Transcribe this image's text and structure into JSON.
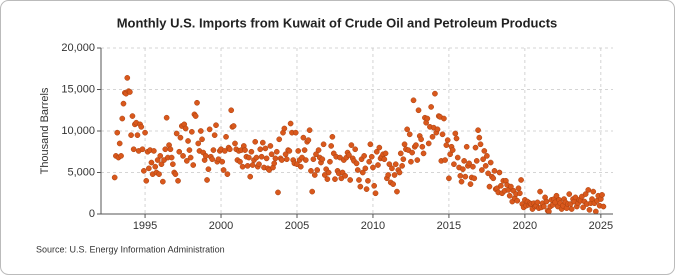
{
  "chart_data": {
    "type": "scatter",
    "title": "Monthly U.S. Imports from Kuwait of Crude Oil and Petroleum Products",
    "y_label": "Thousand Barrels",
    "source": "Source: U.S. Energy Information Administration",
    "color": "#d9581c",
    "grid": true,
    "xlim": [
      1992.1,
      2025.8
    ],
    "xticks": [
      1995,
      2000,
      2005,
      2010,
      2015,
      2020,
      2025
    ],
    "ylim": [
      0,
      20000
    ],
    "yticks": [
      {
        "value": 0,
        "label": "0"
      },
      {
        "value": 5000,
        "label": "5,000"
      },
      {
        "value": 10000,
        "label": "10,000"
      },
      {
        "value": 15000,
        "label": "15,000"
      },
      {
        "value": 20000,
        "label": "20,000"
      }
    ],
    "x": [
      1993.0,
      1993.08,
      1993.17,
      1993.25,
      1993.33,
      1993.42,
      1993.5,
      1993.58,
      1993.67,
      1993.75,
      1993.83,
      1993.92,
      1994.0,
      1994.08,
      1994.17,
      1994.25,
      1994.33,
      1994.42,
      1994.5,
      1994.58,
      1994.67,
      1994.75,
      1994.83,
      1994.92,
      1995.0,
      1995.08,
      1995.17,
      1995.25,
      1995.33,
      1995.42,
      1995.5,
      1995.58,
      1995.67,
      1995.75,
      1995.83,
      1995.92,
      1996.0,
      1996.08,
      1996.17,
      1996.25,
      1996.33,
      1996.42,
      1996.5,
      1996.58,
      1996.67,
      1996.75,
      1996.83,
      1996.92,
      1997.0,
      1997.08,
      1997.17,
      1997.25,
      1997.33,
      1997.42,
      1997.5,
      1997.58,
      1997.67,
      1997.75,
      1997.83,
      1997.92,
      1998.0,
      1998.08,
      1998.17,
      1998.25,
      1998.33,
      1998.42,
      1998.5,
      1998.58,
      1998.67,
      1998.75,
      1998.83,
      1998.92,
      1999.0,
      1999.08,
      1999.17,
      1999.25,
      1999.33,
      1999.42,
      1999.5,
      1999.58,
      1999.67,
      1999.75,
      1999.83,
      1999.92,
      2000.0,
      2000.08,
      2000.17,
      2000.25,
      2000.33,
      2000.42,
      2000.5,
      2000.58,
      2000.67,
      2000.75,
      2000.83,
      2000.92,
      2001.0,
      2001.08,
      2001.17,
      2001.25,
      2001.33,
      2001.42,
      2001.5,
      2001.58,
      2001.67,
      2001.75,
      2001.83,
      2001.92,
      2002.0,
      2002.08,
      2002.17,
      2002.25,
      2002.33,
      2002.42,
      2002.5,
      2002.58,
      2002.67,
      2002.75,
      2002.83,
      2002.92,
      2003.0,
      2003.08,
      2003.17,
      2003.25,
      2003.33,
      2003.42,
      2003.5,
      2003.58,
      2003.67,
      2003.75,
      2003.83,
      2003.92,
      2004.0,
      2004.08,
      2004.17,
      2004.25,
      2004.33,
      2004.42,
      2004.5,
      2004.58,
      2004.67,
      2004.75,
      2004.83,
      2004.92,
      2005.0,
      2005.08,
      2005.17,
      2005.25,
      2005.33,
      2005.42,
      2005.5,
      2005.58,
      2005.67,
      2005.75,
      2005.83,
      2005.92,
      2006.0,
      2006.08,
      2006.17,
      2006.25,
      2006.33,
      2006.42,
      2006.5,
      2006.58,
      2006.67,
      2006.75,
      2006.83,
      2006.92,
      2007.0,
      2007.08,
      2007.17,
      2007.25,
      2007.33,
      2007.42,
      2007.5,
      2007.58,
      2007.67,
      2007.75,
      2007.83,
      2007.92,
      2008.0,
      2008.08,
      2008.17,
      2008.25,
      2008.33,
      2008.42,
      2008.5,
      2008.58,
      2008.67,
      2008.75,
      2008.83,
      2008.92,
      2009.0,
      2009.08,
      2009.17,
      2009.25,
      2009.33,
      2009.42,
      2009.5,
      2009.58,
      2009.67,
      2009.75,
      2009.83,
      2009.92,
      2010.0,
      2010.08,
      2010.17,
      2010.25,
      2010.33,
      2010.42,
      2010.5,
      2010.58,
      2010.67,
      2010.75,
      2010.83,
      2010.92,
      2011.0,
      2011.08,
      2011.17,
      2011.25,
      2011.33,
      2011.42,
      2011.5,
      2011.58,
      2011.67,
      2011.75,
      2011.83,
      2011.92,
      2012.0,
      2012.08,
      2012.17,
      2012.25,
      2012.33,
      2012.42,
      2012.5,
      2012.58,
      2012.67,
      2012.75,
      2012.83,
      2012.92,
      2013.0,
      2013.08,
      2013.17,
      2013.25,
      2013.33,
      2013.42,
      2013.5,
      2013.58,
      2013.67,
      2013.75,
      2013.83,
      2013.92,
      2014.0,
      2014.08,
      2014.17,
      2014.25,
      2014.33,
      2014.42,
      2014.5,
      2014.58,
      2014.67,
      2014.75,
      2014.83,
      2014.92,
      2015.0,
      2015.08,
      2015.17,
      2015.25,
      2015.33,
      2015.42,
      2015.5,
      2015.58,
      2015.67,
      2015.75,
      2015.83,
      2015.92,
      2016.0,
      2016.08,
      2016.17,
      2016.25,
      2016.33,
      2016.42,
      2016.5,
      2016.58,
      2016.67,
      2016.75,
      2016.83,
      2016.92,
      2017.0,
      2017.08,
      2017.17,
      2017.25,
      2017.33,
      2017.42,
      2017.5,
      2017.58,
      2017.67,
      2017.75,
      2017.83,
      2017.92,
      2018.0,
      2018.08,
      2018.17,
      2018.25,
      2018.33,
      2018.42,
      2018.5,
      2018.58,
      2018.67,
      2018.75,
      2018.83,
      2018.92,
      2019.0,
      2019.08,
      2019.17,
      2019.25,
      2019.33,
      2019.42,
      2019.5,
      2019.58,
      2019.67,
      2019.75,
      2019.83,
      2019.92,
      2020.0,
      2020.08,
      2020.17,
      2020.25,
      2020.33,
      2020.42,
      2020.5,
      2020.58,
      2020.67,
      2020.75,
      2020.83,
      2020.92,
      2021.0,
      2021.08,
      2021.17,
      2021.25,
      2021.33,
      2021.42,
      2021.5,
      2021.58,
      2021.67,
      2021.75,
      2021.83,
      2021.92,
      2022.0,
      2022.08,
      2022.17,
      2022.25,
      2022.33,
      2022.42,
      2022.5,
      2022.58,
      2022.67,
      2022.75,
      2022.83,
      2022.92,
      2023.0,
      2023.08,
      2023.17,
      2023.25,
      2023.33,
      2023.42,
      2023.5,
      2023.58,
      2023.67,
      2023.75,
      2023.83,
      2023.92,
      2024.0,
      2024.08,
      2024.17,
      2024.25,
      2024.33,
      2024.42,
      2024.5,
      2024.58,
      2024.67,
      2024.75,
      2024.83,
      2024.92,
      2025.0,
      2025.08,
      2025.17
    ],
    "values": [
      4400,
      7000,
      9800,
      6800,
      8500,
      7000,
      11500,
      13300,
      14600,
      14500,
      16400,
      14800,
      14700,
      9500,
      11800,
      7800,
      10800,
      11000,
      9500,
      7600,
      10800,
      10500,
      7800,
      5200,
      9800,
      4000,
      7500,
      5500,
      7700,
      6200,
      4800,
      7600,
      5700,
      5000,
      6500,
      4800,
      7000,
      6000,
      3900,
      6500,
      7800,
      11600,
      6800,
      8300,
      7800,
      6800,
      6000,
      5000,
      4800,
      9700,
      4000,
      7500,
      9200,
      10600,
      7000,
      10800,
      10300,
      6400,
      8800,
      7700,
      6800,
      9900,
      5900,
      12000,
      11800,
      13400,
      8500,
      7600,
      10000,
      9000,
      7400,
      6500,
      7000,
      4100,
      5400,
      10200,
      6900,
      6600,
      7700,
      9500,
      10700,
      6300,
      6600,
      7600,
      7800,
      6300,
      5300,
      7600,
      9300,
      4800,
      8000,
      7800,
      12500,
      10500,
      10600,
      8500,
      7800,
      6500,
      7600,
      6300,
      7700,
      5700,
      8200,
      7700,
      6900,
      5800,
      6800,
      4500,
      7500,
      5900,
      6500,
      8700,
      6800,
      5700,
      6000,
      7800,
      6900,
      8600,
      5600,
      7900,
      6700,
      5500,
      5300,
      8200,
      7200,
      5600,
      6100,
      6700,
      7500,
      2600,
      9000,
      6700,
      6500,
      9800,
      10300,
      7200,
      6600,
      7700,
      7600,
      10900,
      9800,
      6500,
      6100,
      9800,
      6000,
      7600,
      6500,
      5700,
      6800,
      9200,
      7700,
      6500,
      8700,
      8900,
      10100,
      5200,
      2700,
      6600,
      4700,
      7200,
      5300,
      7700,
      6800,
      6200,
      6600,
      8400,
      4700,
      5400,
      4200,
      5000,
      6300,
      8200,
      9300,
      7300,
      4200,
      6900,
      5200,
      4900,
      6800,
      4300,
      5000,
      6500,
      4600,
      6800,
      7400,
      7100,
      4100,
      8300,
      6700,
      6400,
      7800,
      6100,
      5300,
      4100,
      3300,
      6600,
      5000,
      7000,
      5500,
      3000,
      4000,
      6300,
      8400,
      6900,
      5600,
      3400,
      2500,
      7500,
      5900,
      8000,
      6700,
      6900,
      7200,
      6600,
      7300,
      4300,
      4700,
      6000,
      3800,
      5500,
      3600,
      4700,
      6000,
      2700,
      5300,
      5000,
      7300,
      5800,
      6600,
      8400,
      7800,
      10200,
      7700,
      9600,
      6300,
      7400,
      13700,
      8100,
      8300,
      6500,
      12500,
      9400,
      9000,
      8100,
      7300,
      11600,
      11000,
      11500,
      8500,
      10500,
      12900,
      9300,
      10400,
      14500,
      9800,
      10200,
      11800,
      11700,
      6400,
      9600,
      11500,
      6500,
      8300,
      8900,
      4300,
      7200,
      8100,
      7700,
      6000,
      9700,
      9100,
      6800,
      5600,
      4600,
      3900,
      5400,
      6400,
      4500,
      8100,
      5800,
      6100,
      3600,
      4400,
      5700,
      4300,
      8000,
      6400,
      10100,
      9200,
      8400,
      5300,
      6600,
      7600,
      5800,
      7000,
      4900,
      3300,
      6200,
      4500,
      4300,
      5200,
      3000,
      3100,
      2600,
      5000,
      3400,
      2500,
      4000,
      2800,
      4000,
      3500,
      2900,
      2200,
      3300,
      1500,
      2800,
      1900,
      2400,
      1600,
      3100,
      2500,
      4100,
      1200,
      800,
      1700,
      1000,
      1500,
      1100,
      1300,
      1200,
      600,
      1300,
      900,
      1000,
      1400,
      700,
      2700,
      800,
      1300,
      900,
      2000,
      1500,
      400,
      300,
      900,
      1700,
      1100,
      1800,
      1400,
      2200,
      900,
      1700,
      1300,
      600,
      1000,
      1800,
      1400,
      700,
      1200,
      2400,
      1200,
      600,
      1800,
      1500,
      2000,
      900,
      1300,
      1700,
      1600,
      2100,
      800,
      1500,
      2400,
      1200,
      2900,
      500,
      1300,
      1800,
      2700,
      1300,
      300,
      1600,
      2200,
      1000,
      1800,
      2300,
      900
    ]
  }
}
